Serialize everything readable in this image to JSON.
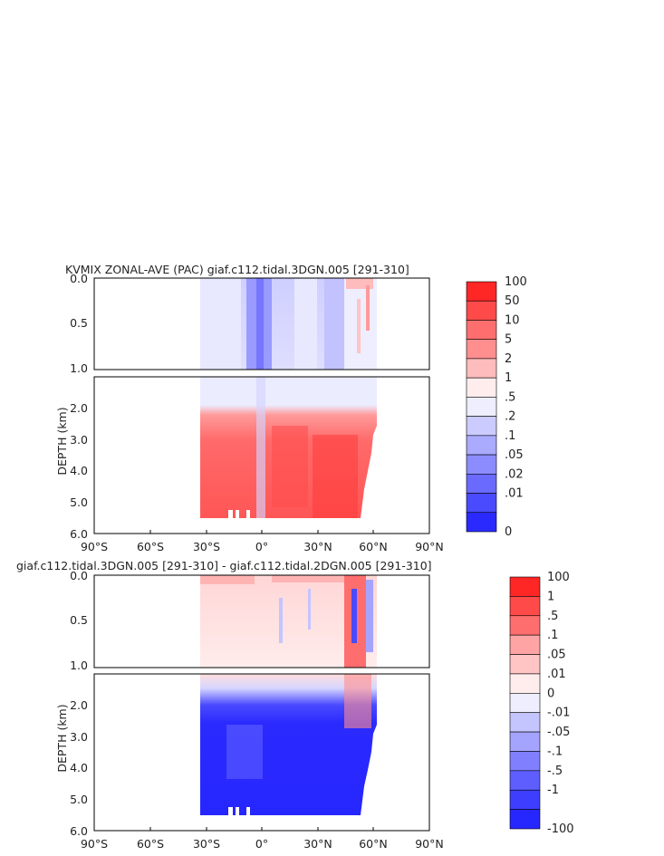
{
  "chart_data": [
    {
      "type": "heatmap",
      "title": "KVMIX ZONAL-AVE (PAC) giaf.c112.tidal.3DGN.005 [291-310]",
      "ylabel": "DEPTH (km)",
      "xticks": [
        "90°S",
        "60°S",
        "30°S",
        "0°",
        "30°N",
        "60°N",
        "90°N"
      ],
      "xrange": [
        -90,
        90
      ],
      "yticks_top": [
        "0.0",
        "0.5",
        "1.0"
      ],
      "yticks_bottom": [
        "2.0",
        "3.0",
        "4.0",
        "5.0",
        "6.0"
      ],
      "yrange_km": [
        0,
        6
      ],
      "colorbar_labels": [
        "100",
        "50",
        "10",
        "5",
        "2",
        "1",
        ".5",
        ".2",
        ".1",
        ".05",
        ".02",
        ".01",
        "0"
      ],
      "colorbar_colors": [
        "#ff2626",
        "#ff4a4a",
        "#ff6e6e",
        "#ff8e8e",
        "#ffbcbc",
        "#ffeded",
        "#eeeeff",
        "#cbcbff",
        "#aaaaff",
        "#8c8cff",
        "#6a6aff",
        "#4a4aff",
        "#2a2aff"
      ],
      "data_extent": {
        "lat_min": -34,
        "lat_max": 63,
        "depth_max_km": 5.5
      }
    },
    {
      "type": "heatmap",
      "title": "giaf.c112.tidal.3DGN.005 [291-310] - giaf.c112.tidal.2DGN.005 [291-310]",
      "ylabel": "DEPTH (km)",
      "xticks": [
        "90°S",
        "60°S",
        "30°S",
        "0°",
        "30°N",
        "60°N",
        "90°N"
      ],
      "xrange": [
        -90,
        90
      ],
      "yticks_top": [
        "0.0",
        "0.5",
        "1.0"
      ],
      "yticks_bottom": [
        "2.0",
        "3.0",
        "4.0",
        "5.0",
        "6.0"
      ],
      "yrange_km": [
        0,
        6
      ],
      "colorbar_labels": [
        "100",
        "1",
        ".5",
        ".1",
        ".05",
        ".01",
        "0",
        "-.01",
        "-.05",
        "-.1",
        "-.5",
        "-1",
        "-100"
      ],
      "colorbar_colors": [
        "#ff2626",
        "#ff4a4a",
        "#ff6e6e",
        "#ffa4a4",
        "#ffc4c4",
        "#ffeded",
        "#eeeeff",
        "#c4c4ff",
        "#a4a4ff",
        "#8080ff",
        "#5e5eff",
        "#3e3eff",
        "#2626ff"
      ],
      "data_extent": {
        "lat_min": -34,
        "lat_max": 63,
        "depth_max_km": 5.5
      }
    }
  ]
}
